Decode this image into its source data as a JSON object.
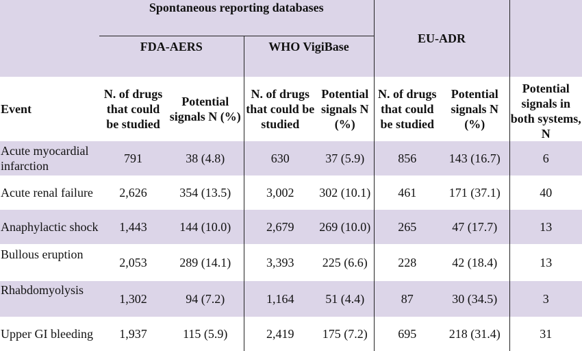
{
  "header": {
    "spontaneous": "Spontaneous reporting databases",
    "fda": "FDA-AERS",
    "who": "WHO VigiBase",
    "euadr": "EU-ADR",
    "event": "Event",
    "n_drugs": "N. of drugs that could be studied",
    "potential_signals": "Potential signals N (%)",
    "both": "Potential signals in both systems, N"
  },
  "rows": [
    {
      "event": "Acute myocardial infarction",
      "fda_n": "791",
      "fda_sig": "38 (4.8)",
      "who_n": "630",
      "who_sig": "37 (5.9)",
      "eu_n": "856",
      "eu_sig": "143 (16.7)",
      "both": "6"
    },
    {
      "event": "Acute renal failure",
      "fda_n": "2,626",
      "fda_sig": "354 (13.5)",
      "who_n": "3,002",
      "who_sig": "302 (10.1)",
      "eu_n": "461",
      "eu_sig": "171 (37.1)",
      "both": "40"
    },
    {
      "event": "Anaphylactic shock",
      "fda_n": "1,443",
      "fda_sig": "144 (10.0)",
      "who_n": "2,679",
      "who_sig": "269 (10.0)",
      "eu_n": "265",
      "eu_sig": "47 (17.7)",
      "both": "13"
    },
    {
      "event": "Bullous eruption",
      "fda_n": "2,053",
      "fda_sig": "289 (14.1)",
      "who_n": "3,393",
      "who_sig": "225 (6.6)",
      "eu_n": "228",
      "eu_sig": "42 (18.4)",
      "both": "13"
    },
    {
      "event": "Rhabdomyolysis",
      "fda_n": "1,302",
      "fda_sig": "94 (7.2)",
      "who_n": "1,164",
      "who_sig": "51 (4.4)",
      "eu_n": "87",
      "eu_sig": "30 (34.5)",
      "both": "3"
    },
    {
      "event": "Upper GI bleeding",
      "fda_n": "1,937",
      "fda_sig": "115 (5.9)",
      "who_n": "2,419",
      "who_sig": "175 (7.2)",
      "eu_n": "695",
      "eu_sig": "218 (31.4)",
      "both": "31"
    }
  ]
}
